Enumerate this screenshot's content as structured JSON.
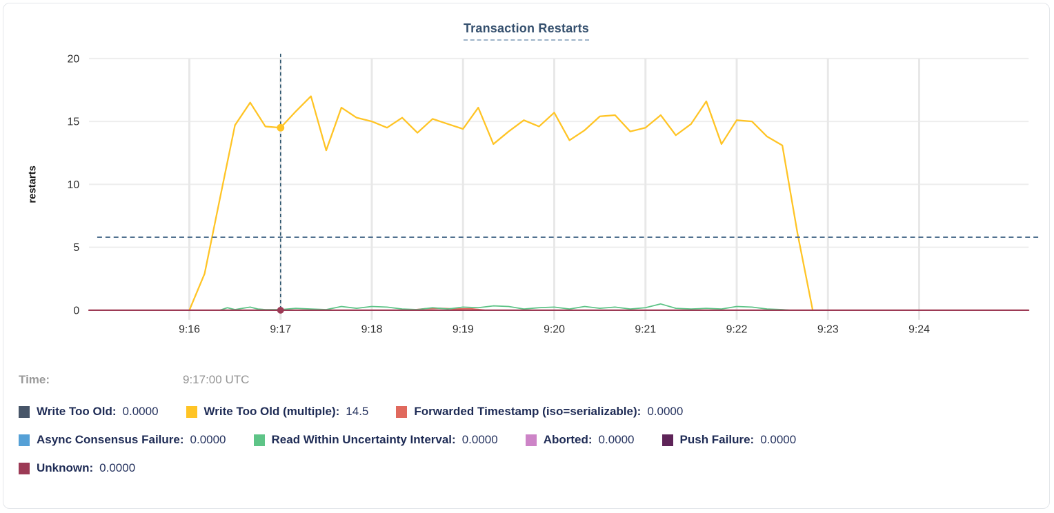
{
  "time_display": {
    "label": "Time:",
    "value": "9:17:00 UTC"
  },
  "chart_data": {
    "type": "line",
    "title": "Transaction Restarts",
    "xlabel": "",
    "ylabel": "restarts",
    "ylim": [
      0,
      20
    ],
    "y_ticks": [
      0,
      5,
      10,
      15,
      20
    ],
    "x_unit": "minutes after 9:00 UTC",
    "x_domain": [
      14.9,
      25.2
    ],
    "x_ticks": [
      {
        "t": 16,
        "label": "9:16"
      },
      {
        "t": 17,
        "label": "9:17"
      },
      {
        "t": 18,
        "label": "9:18"
      },
      {
        "t": 19,
        "label": "9:19"
      },
      {
        "t": 20,
        "label": "9:20"
      },
      {
        "t": 21,
        "label": "9:21"
      },
      {
        "t": 22,
        "label": "9:22"
      },
      {
        "t": 23,
        "label": "9:23"
      },
      {
        "t": 24,
        "label": "9:24"
      }
    ],
    "grid": true,
    "legend_position": "bottom",
    "hover": {
      "t": 17,
      "time": "9:17:00 UTC",
      "crosshair_value": 5.8,
      "dots": [
        {
          "series": "Write Too Old (multiple)",
          "value": 14.5
        },
        {
          "series": "Unknown",
          "value": 0
        }
      ]
    },
    "series": [
      {
        "name": "Write Too Old",
        "color": "#475568",
        "cursor_value": "0.0000",
        "points": [
          [
            14.9,
            0
          ],
          [
            25.2,
            0
          ]
        ]
      },
      {
        "name": "Write Too Old (multiple)",
        "color": "#ffc425",
        "cursor_value": "14.5",
        "points": [
          [
            16.0,
            0
          ],
          [
            16.167,
            2.9
          ],
          [
            16.333,
            8.8
          ],
          [
            16.5,
            14.7
          ],
          [
            16.667,
            16.5
          ],
          [
            16.833,
            14.6
          ],
          [
            17.0,
            14.5
          ],
          [
            17.167,
            15.8
          ],
          [
            17.333,
            17.0
          ],
          [
            17.5,
            12.7
          ],
          [
            17.667,
            16.1
          ],
          [
            17.833,
            15.3
          ],
          [
            18.0,
            15.0
          ],
          [
            18.167,
            14.5
          ],
          [
            18.333,
            15.3
          ],
          [
            18.5,
            14.1
          ],
          [
            18.667,
            15.2
          ],
          [
            18.833,
            14.8
          ],
          [
            19.0,
            14.4
          ],
          [
            19.167,
            16.1
          ],
          [
            19.333,
            13.2
          ],
          [
            19.5,
            14.2
          ],
          [
            19.667,
            15.1
          ],
          [
            19.833,
            14.6
          ],
          [
            20.0,
            15.7
          ],
          [
            20.167,
            13.5
          ],
          [
            20.333,
            14.3
          ],
          [
            20.5,
            15.4
          ],
          [
            20.667,
            15.5
          ],
          [
            20.833,
            14.2
          ],
          [
            21.0,
            14.5
          ],
          [
            21.167,
            15.5
          ],
          [
            21.333,
            13.9
          ],
          [
            21.5,
            14.8
          ],
          [
            21.667,
            16.6
          ],
          [
            21.833,
            13.2
          ],
          [
            22.0,
            15.1
          ],
          [
            22.167,
            15.0
          ],
          [
            22.333,
            13.8
          ],
          [
            22.5,
            13.1
          ],
          [
            22.667,
            6.1
          ],
          [
            22.833,
            0
          ]
        ]
      },
      {
        "name": "Forwarded Timestamp (iso=serializable)",
        "color": "#e0695d",
        "cursor_value": "0.0000",
        "points": [
          [
            14.9,
            0
          ],
          [
            18.42,
            0
          ],
          [
            18.58,
            0.12
          ],
          [
            18.75,
            0.15
          ],
          [
            18.92,
            0.1
          ],
          [
            19.08,
            0.12
          ],
          [
            19.25,
            0
          ],
          [
            25.2,
            0
          ]
        ]
      },
      {
        "name": "Async Consensus Failure",
        "color": "#55a0d6",
        "cursor_value": "0.0000",
        "points": [
          [
            14.9,
            0
          ],
          [
            25.2,
            0
          ]
        ]
      },
      {
        "name": "Read Within Uncertainty Interval",
        "color": "#5ec487",
        "cursor_value": "0.0000",
        "points": [
          [
            16.333,
            0
          ],
          [
            16.417,
            0.2
          ],
          [
            16.5,
            0.05
          ],
          [
            16.583,
            0.15
          ],
          [
            16.667,
            0.25
          ],
          [
            16.75,
            0.1
          ],
          [
            16.833,
            0.05
          ],
          [
            17.0,
            0.05
          ],
          [
            17.167,
            0.15
          ],
          [
            17.333,
            0.1
          ],
          [
            17.5,
            0.05
          ],
          [
            17.667,
            0.3
          ],
          [
            17.833,
            0.15
          ],
          [
            18.0,
            0.3
          ],
          [
            18.167,
            0.25
          ],
          [
            18.333,
            0.1
          ],
          [
            18.5,
            0.05
          ],
          [
            18.667,
            0.2
          ],
          [
            18.833,
            0.1
          ],
          [
            19.0,
            0.25
          ],
          [
            19.167,
            0.2
          ],
          [
            19.333,
            0.35
          ],
          [
            19.5,
            0.3
          ],
          [
            19.667,
            0.1
          ],
          [
            19.833,
            0.2
          ],
          [
            20.0,
            0.25
          ],
          [
            20.167,
            0.1
          ],
          [
            20.333,
            0.3
          ],
          [
            20.5,
            0.15
          ],
          [
            20.667,
            0.25
          ],
          [
            20.833,
            0.1
          ],
          [
            21.0,
            0.2
          ],
          [
            21.167,
            0.5
          ],
          [
            21.333,
            0.15
          ],
          [
            21.5,
            0.1
          ],
          [
            21.667,
            0.15
          ],
          [
            21.833,
            0.1
          ],
          [
            22.0,
            0.3
          ],
          [
            22.167,
            0.25
          ],
          [
            22.333,
            0.1
          ],
          [
            22.5,
            0.05
          ],
          [
            22.583,
            0
          ]
        ]
      },
      {
        "name": "Aborted",
        "color": "#cd84c7",
        "cursor_value": "0.0000",
        "points": [
          [
            14.9,
            0
          ],
          [
            25.2,
            0
          ]
        ]
      },
      {
        "name": "Push Failure",
        "color": "#5e2458",
        "cursor_value": "0.0000",
        "points": [
          [
            14.9,
            0
          ],
          [
            25.2,
            0
          ]
        ]
      },
      {
        "name": "Unknown",
        "color": "#9c3a55",
        "cursor_value": "0.0000",
        "points": [
          [
            14.9,
            0
          ],
          [
            25.2,
            0
          ]
        ]
      }
    ],
    "draw_order": [
      "Write Too Old",
      "Async Consensus Failure",
      "Aborted",
      "Push Failure",
      "Forwarded Timestamp (iso=serializable)",
      "Read Within Uncertainty Interval",
      "Write Too Old (multiple)",
      "Unknown"
    ]
  },
  "legend_rows": [
    [
      "Write Too Old",
      "Write Too Old (multiple)",
      "Forwarded Timestamp (iso=serializable)"
    ],
    [
      "Async Consensus Failure",
      "Read Within Uncertainty Interval",
      "Aborted",
      "Push Failure"
    ],
    [
      "Unknown"
    ]
  ],
  "colors": {
    "crosshair_vertical": "#2a536d",
    "crosshair_horizontal": "#51718f",
    "grid_horizontal": "#ededed",
    "grid_vertical": "#e8e8e8",
    "axis_text": "#2e2e2e",
    "title": "#35506e",
    "legend_text": "#1e2b55",
    "time_text": "#9a9a9a"
  }
}
